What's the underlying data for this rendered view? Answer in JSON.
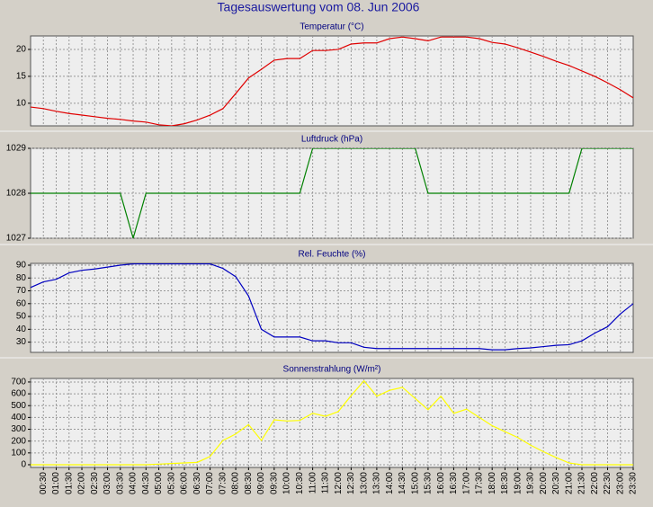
{
  "title": "Tagesauswertung vom 08. Jun 2006",
  "chart_data": [
    {
      "type": "line",
      "title": "Temperatur (°C)",
      "color": "#e00000",
      "values": [
        9.3,
        9.0,
        8.5,
        8.1,
        7.8,
        7.5,
        7.2,
        7.0,
        6.7,
        6.5,
        6.0,
        5.8,
        6.2,
        6.9,
        7.8,
        9.0,
        11.8,
        14.7,
        16.3,
        18.0,
        18.3,
        18.3,
        19.8,
        19.8,
        20.0,
        21.0,
        21.2,
        21.2,
        22.0,
        22.3,
        22.0,
        21.6,
        22.3,
        22.3,
        22.3,
        22.0,
        21.3,
        21.0,
        20.3,
        19.5,
        18.7,
        17.8,
        17.0,
        16.0,
        15.0,
        13.8,
        12.5,
        11.0
      ],
      "ylim": [
        5.8,
        22.5
      ],
      "yticks": [
        10,
        15,
        20
      ],
      "grid": true
    },
    {
      "type": "line",
      "title": "Luftdruck (hPa)",
      "color": "#008000",
      "values": [
        1028,
        1028,
        1028,
        1028,
        1028,
        1028,
        1028,
        1028,
        1027,
        1028,
        1028,
        1028,
        1028,
        1028,
        1028,
        1028,
        1028,
        1028,
        1028,
        1028,
        1028,
        1028,
        1029,
        1029,
        1029,
        1029,
        1029,
        1029,
        1029,
        1029,
        1029,
        1028,
        1028,
        1028,
        1028,
        1028,
        1028,
        1028,
        1028,
        1028,
        1028,
        1028,
        1028,
        1029,
        1029,
        1029,
        1029,
        1029
      ],
      "ylim": [
        1027,
        1029
      ],
      "yticks": [
        1027,
        1028,
        1029
      ],
      "grid": true
    },
    {
      "type": "line",
      "title": "Rel. Feuchte (%)",
      "color": "#0000c0",
      "values": [
        72.6,
        77,
        79,
        84,
        86,
        87,
        88.5,
        90,
        91,
        91,
        91,
        91,
        91,
        91,
        91,
        87.5,
        81,
        66,
        40,
        34,
        34,
        34,
        31,
        31,
        29.5,
        29.5,
        26,
        25,
        25,
        25,
        25,
        25,
        25,
        25,
        25,
        25,
        24,
        24,
        25,
        25.5,
        26.5,
        27.5,
        28,
        31,
        37,
        42,
        52,
        60
      ],
      "ylim": [
        22,
        91.4
      ],
      "yticks": [
        30,
        40,
        50,
        60,
        70,
        80,
        90
      ],
      "grid": true
    },
    {
      "type": "line",
      "title": "Sonnenstrahlung (W/m²)",
      "color": "#ffff00",
      "categories": [
        null,
        "00:30",
        "01:00",
        "01:30",
        "02:00",
        "02:30",
        "03:00",
        "03:30",
        "04:00",
        "04:30",
        "05:00",
        "05:30",
        "06:00",
        "06:30",
        "07:00",
        "07:30",
        "08:00",
        "08:30",
        "09:00",
        "09:30",
        "10:00",
        "10:30",
        "11:00",
        "11:30",
        "12:00",
        "12:30",
        "13:00",
        "13:30",
        "14:00",
        "14:30",
        "15:00",
        "15:30",
        "16:00",
        "16:30",
        "17:00",
        "17:30",
        "18:00",
        "18:30",
        "19:00",
        "19:30",
        "20:00",
        "20:30",
        "21:00",
        "21:30",
        "22:00",
        "22:30",
        "23:00",
        "23:30"
      ],
      "values": [
        0,
        0,
        0,
        0,
        0,
        0,
        0,
        0,
        0,
        0,
        5,
        10,
        15,
        20,
        70,
        205,
        260,
        340,
        205,
        380,
        370,
        375,
        435,
        410,
        450,
        585,
        710,
        580,
        630,
        655,
        560,
        465,
        580,
        435,
        470,
        400,
        330,
        280,
        230,
        165,
        110,
        60,
        15,
        0,
        0,
        0,
        0,
        0
      ],
      "ylim": [
        -23,
        730
      ],
      "yticks": [
        0,
        100,
        200,
        300,
        400,
        500,
        600,
        700
      ],
      "grid": true
    }
  ]
}
